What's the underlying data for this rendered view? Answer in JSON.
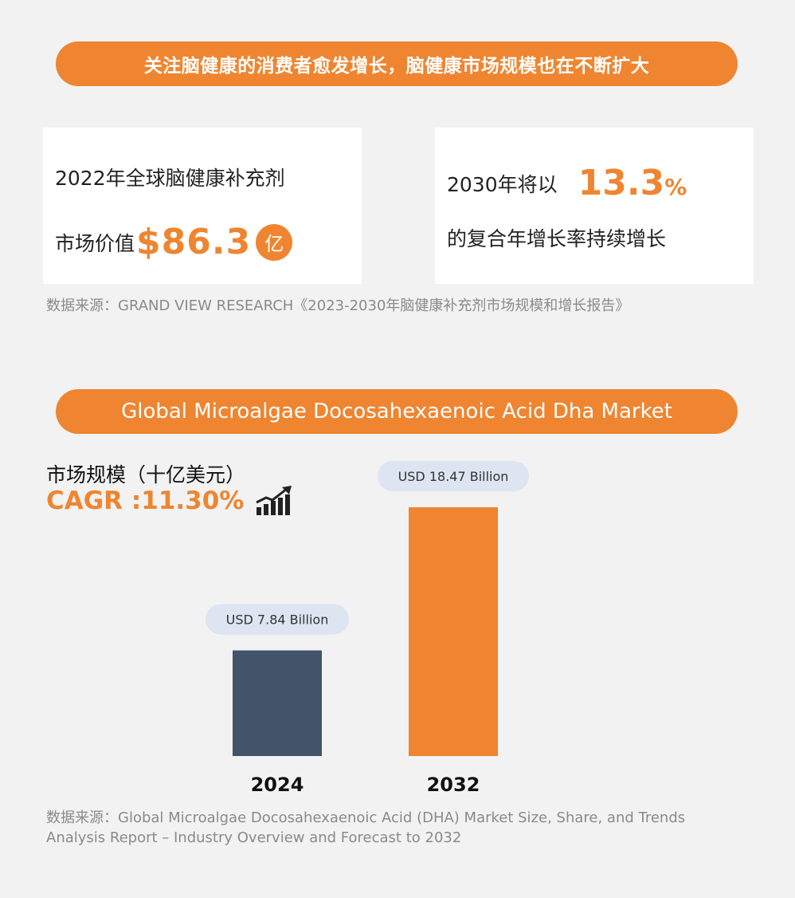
{
  "header": {
    "banner_text": "关注脑健康的消费者愈发增长，脑健康市场规模也在不断扩大"
  },
  "stats": {
    "left": {
      "line1": "2022年全球脑健康补充剂",
      "line2_prefix": "市场价值",
      "value": "$86.3",
      "unit": "亿"
    },
    "right": {
      "prefix": "2030年将以",
      "value": "13.3",
      "value_suffix": "%",
      "line2": "的复合年增长率持续增长"
    },
    "source": "数据来源：GRAND VIEW RESEARCH《2023-2030年脑健康补充剂市场规模和增长报告》"
  },
  "market": {
    "banner_text": "Global Microalgae Docosahexaenoic Acid Dha Market",
    "subtitle": "市场规模（十亿美元）",
    "cagr": "CAGR :11.30%",
    "cagr_icon": "growth-chart-icon",
    "source": "数据来源：Global Microalgae Docosahexaenoic Acid (DHA) Market Size, Share, and Trends Analysis Report – Industry Overview and Forecast to 2032"
  },
  "colors": {
    "accent": "#ef8530",
    "bar_2024": "#435369",
    "bar_2032": "#ef8530",
    "label_pill": "#dde4f2"
  },
  "chart_data": {
    "type": "bar",
    "title": "",
    "ylabel": "市场规模（十亿美元）",
    "categories": [
      "2024",
      "2032"
    ],
    "values": [
      7.84,
      18.47
    ],
    "data_labels": [
      "USD 7.84 Billion",
      "USD 18.47 Billion"
    ],
    "ylim": [
      0,
      18.47
    ],
    "grid": false,
    "legend": "none"
  }
}
